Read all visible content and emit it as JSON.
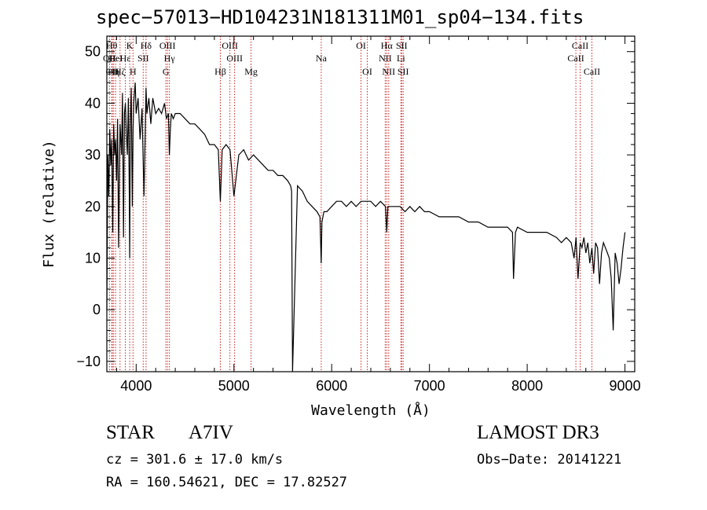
{
  "chart_data": {
    "type": "line",
    "title": "spec−57013−HD104231N181311M01_sp04−134.fits",
    "xlabel": "Wavelength (Å)",
    "ylabel": "Flux (relative)",
    "xlim": [
      3700,
      9100
    ],
    "ylim": [
      -12,
      53
    ],
    "xticks": [
      4000,
      5000,
      6000,
      7000,
      8000,
      9000
    ],
    "xtick_labels": [
      "4000",
      "5000",
      "6000",
      "7000",
      "8000",
      "9000"
    ],
    "yticks": [
      -10,
      0,
      10,
      20,
      30,
      40,
      50
    ],
    "ytick_labels": [
      "−10",
      "0",
      "10",
      "20",
      "30",
      "40",
      "50"
    ],
    "series": [
      {
        "name": "flux",
        "x": [
          3700,
          3710,
          3720,
          3730,
          3740,
          3750,
          3760,
          3770,
          3780,
          3790,
          3800,
          3810,
          3820,
          3835,
          3850,
          3860,
          3870,
          3880,
          3890,
          3900,
          3910,
          3920,
          3930,
          3934,
          3940,
          3950,
          3960,
          3968,
          3975,
          3990,
          4000,
          4020,
          4040,
          4060,
          4080,
          4101,
          4110,
          4130,
          4150,
          4170,
          4200,
          4230,
          4260,
          4290,
          4310,
          4330,
          4340,
          4350,
          4360,
          4380,
          4400,
          4450,
          4500,
          4550,
          4600,
          4650,
          4700,
          4750,
          4800,
          4840,
          4861,
          4880,
          4920,
          4960,
          5000,
          5050,
          5100,
          5150,
          5200,
          5250,
          5300,
          5350,
          5400,
          5450,
          5500,
          5550,
          5580,
          5590,
          5600,
          5650,
          5700,
          5750,
          5800,
          5850,
          5880,
          5893,
          5900,
          5920,
          5950,
          6000,
          6050,
          6100,
          6150,
          6200,
          6250,
          6300,
          6350,
          6400,
          6450,
          6500,
          6550,
          6563,
          6575,
          6600,
          6650,
          6700,
          6750,
          6800,
          6850,
          6900,
          6950,
          7000,
          7100,
          7200,
          7300,
          7400,
          7500,
          7600,
          7700,
          7800,
          7850,
          7860,
          7880,
          7900,
          8000,
          8100,
          8200,
          8300,
          8350,
          8400,
          8450,
          8480,
          8500,
          8520,
          8542,
          8560,
          8580,
          8600,
          8620,
          8640,
          8662,
          8680,
          8700,
          8720,
          8740,
          8760,
          8780,
          8800,
          8820,
          8840,
          8860,
          8880,
          8900,
          8920,
          8940,
          8960,
          8980,
          9000
        ],
        "y": [
          0,
          30,
          22,
          35,
          28,
          33,
          15,
          36,
          30,
          33,
          25,
          37,
          12,
          36,
          30,
          42,
          14,
          38,
          40,
          34,
          30,
          41,
          22,
          10,
          36,
          43,
          20,
          35,
          40,
          44,
          38,
          41,
          33,
          39,
          22,
          43,
          38,
          41,
          36,
          41,
          38,
          39,
          38,
          40,
          37,
          38,
          30,
          35,
          38,
          37,
          38,
          38,
          37,
          36,
          36,
          35,
          34,
          32,
          32,
          31,
          21,
          31,
          32,
          31,
          22,
          30,
          31,
          29,
          30,
          29,
          28,
          27,
          27,
          26,
          26,
          25,
          24,
          23,
          -12,
          24,
          23,
          21,
          20,
          19,
          18,
          9,
          17,
          19,
          19,
          20,
          21,
          21,
          20,
          21,
          20,
          21,
          21,
          21,
          20,
          21,
          20,
          15,
          20,
          20,
          20,
          20,
          19,
          20,
          19,
          20,
          19,
          19,
          18,
          18,
          18,
          17,
          17,
          16,
          16,
          16,
          15,
          6,
          15,
          16,
          15,
          15,
          15,
          14,
          13,
          14,
          13,
          10,
          14,
          6,
          13,
          12,
          14,
          11,
          13,
          9,
          12,
          7,
          13,
          12,
          5,
          11,
          13,
          12,
          11,
          10,
          6,
          -4,
          11,
          9,
          5,
          8,
          12,
          15
        ]
      }
    ],
    "spectral_lines": [
      {
        "label": "OII",
        "x": 3727,
        "row": 1
      },
      {
        "label": "Hθ",
        "x": 3750,
        "row": 0
      },
      {
        "label": "OII",
        "x": 3756,
        "row": 2
      },
      {
        "label": "Hη",
        "x": 3770,
        "row": 2
      },
      {
        "label": "HeI",
        "x": 3790,
        "row": 1
      },
      {
        "label": "Hζ",
        "x": 3835,
        "row": 2
      },
      {
        "label": "Hε",
        "x": 3889,
        "row": 1
      },
      {
        "label": "K",
        "x": 3934,
        "row": 0
      },
      {
        "label": "H",
        "x": 3968,
        "row": 2
      },
      {
        "label": "SII",
        "x": 4072,
        "row": 1
      },
      {
        "label": "Hδ",
        "x": 4101,
        "row": 0
      },
      {
        "label": "G",
        "x": 4304,
        "row": 2
      },
      {
        "label": "OIII",
        "x": 4320,
        "row": 0
      },
      {
        "label": "Hγ",
        "x": 4340,
        "row": 1
      },
      {
        "label": "Hβ",
        "x": 4861,
        "row": 2
      },
      {
        "label": "OIII",
        "x": 4959,
        "row": 0
      },
      {
        "label": "OIII",
        "x": 5007,
        "row": 1
      },
      {
        "label": "Mg",
        "x": 5175,
        "row": 2
      },
      {
        "label": "Na",
        "x": 5893,
        "row": 1
      },
      {
        "label": "OI",
        "x": 6300,
        "row": 0
      },
      {
        "label": "OI",
        "x": 6364,
        "row": 2
      },
      {
        "label": "Hα",
        "x": 6563,
        "row": 0
      },
      {
        "label": "NII",
        "x": 6548,
        "row": 1
      },
      {
        "label": "NII",
        "x": 6583,
        "row": 2
      },
      {
        "label": "SII",
        "x": 6716,
        "row": 0
      },
      {
        "label": "Li",
        "x": 6708,
        "row": 1
      },
      {
        "label": "SII",
        "x": 6731,
        "row": 2
      },
      {
        "label": "CaII",
        "x": 8542,
        "row": 0
      },
      {
        "label": "CaII",
        "x": 8498,
        "row": 1
      },
      {
        "label": "CaII",
        "x": 8662,
        "row": 2
      }
    ],
    "colors": {
      "spectrum": "#000000",
      "line_marker": "#d02020",
      "axes": "#000000"
    }
  },
  "info": {
    "object_type": "STAR",
    "spectral_class": "A7IV",
    "redshift": "cz = 301.6 ± 17.0 km/s",
    "coords": "RA = 160.54621, DEC =  17.82527",
    "survey": "LAMOST DR3",
    "obs_date": "Obs−Date: 20141221"
  }
}
